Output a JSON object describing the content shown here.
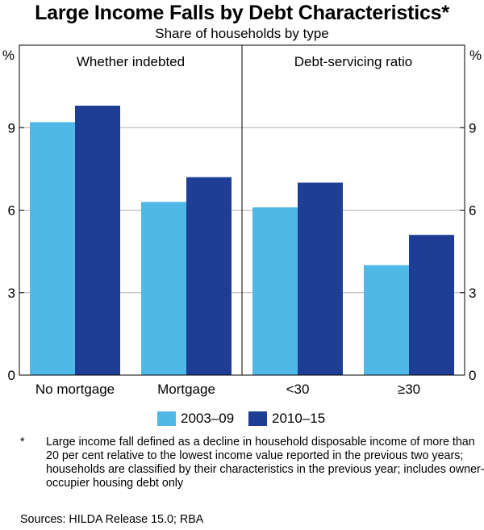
{
  "title": "Large Income Falls by Debt Characteristics*",
  "subtitle": "Share of households by type",
  "legend": [
    {
      "label": "2003–09",
      "color": "#4fb8e6"
    },
    {
      "label": "2010–15",
      "color": "#1e3e96"
    }
  ],
  "footnote": {
    "marker": "*",
    "text": "Large income fall defined as a decline in household disposable income of more than 20 per cent relative to the lowest income value reported in the previous two years; households are classified by their characteristics in the previous year; includes owner-occupier housing debt only"
  },
  "sources": "Sources: HILDA Release 15.0; RBA",
  "chart_data": {
    "type": "bar",
    "y_unit": "%",
    "ylim": [
      0,
      12
    ],
    "yticks": [
      0,
      3,
      6,
      9
    ],
    "panels": [
      {
        "title": "Whether indebted",
        "categories": [
          "No mortgage",
          "Mortgage"
        ],
        "series": [
          {
            "name": "2003–09",
            "values": [
              9.2,
              6.3
            ]
          },
          {
            "name": "2010–15",
            "values": [
              9.8,
              7.2
            ]
          }
        ]
      },
      {
        "title": "Debt-servicing ratio",
        "categories": [
          "<30",
          "≥30"
        ],
        "series": [
          {
            "name": "2003–09",
            "values": [
              6.1,
              4.0
            ]
          },
          {
            "name": "2010–15",
            "values": [
              7.0,
              5.1
            ]
          }
        ]
      }
    ]
  }
}
